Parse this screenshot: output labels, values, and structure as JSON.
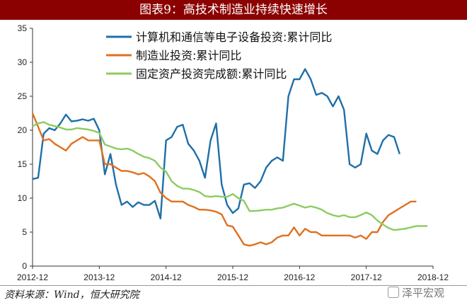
{
  "title": "图表9：高技术制造业持续快速增长",
  "source": "资料来源：Wind，恒大研究院",
  "watermark": "泽平宏观",
  "chart_data": {
    "type": "line",
    "ylim": [
      0,
      35
    ],
    "yticks": [
      0,
      5,
      10,
      15,
      20,
      25,
      30,
      35
    ],
    "xlim": [
      "2012-12",
      "2018-12"
    ],
    "xticks": [
      "2012-12",
      "2013-12",
      "2014-12",
      "2015-12",
      "2016-12",
      "2017-12",
      "2018-12"
    ],
    "legend_position": "top-center",
    "grid": false,
    "series": [
      {
        "name": "计算机和通信等电子设备投资:累计同比",
        "color": "#1f6fa8",
        "points": [
          [
            "2012-12",
            12.8
          ],
          [
            "2013-01",
            13
          ],
          [
            "2013-02",
            19.5
          ],
          [
            "2013-03",
            20.3
          ],
          [
            "2013-04",
            20
          ],
          [
            "2013-05",
            21
          ],
          [
            "2013-06",
            22.3
          ],
          [
            "2013-07",
            21.3
          ],
          [
            "2013-08",
            21.4
          ],
          [
            "2013-09",
            21.6
          ],
          [
            "2013-10",
            21.4
          ],
          [
            "2013-11",
            21.7
          ],
          [
            "2013-12",
            20
          ],
          [
            "2014-01",
            13.5
          ],
          [
            "2014-02",
            16.5
          ],
          [
            "2014-03",
            12
          ],
          [
            "2014-04",
            9
          ],
          [
            "2014-05",
            9.5
          ],
          [
            "2014-06",
            8.7
          ],
          [
            "2014-07",
            9.4
          ],
          [
            "2014-08",
            9
          ],
          [
            "2014-09",
            9
          ],
          [
            "2014-10",
            9.6
          ],
          [
            "2014-11",
            7
          ],
          [
            "2014-12",
            18.5
          ],
          [
            "2015-01",
            19
          ],
          [
            "2015-02",
            20.5
          ],
          [
            "2015-03",
            20.8
          ],
          [
            "2015-04",
            18
          ],
          [
            "2015-05",
            17
          ],
          [
            "2015-06",
            15.5
          ],
          [
            "2015-07",
            13
          ],
          [
            "2015-08",
            18.5
          ],
          [
            "2015-09",
            21
          ],
          [
            "2015-10",
            12
          ],
          [
            "2015-11",
            9
          ],
          [
            "2015-12",
            7.8
          ],
          [
            "2016-01",
            8.5
          ],
          [
            "2016-02",
            12
          ],
          [
            "2016-03",
            12.2
          ],
          [
            "2016-04",
            11.5
          ],
          [
            "2016-05",
            12.5
          ],
          [
            "2016-06",
            14.5
          ],
          [
            "2016-07",
            15.5
          ],
          [
            "2016-08",
            16
          ],
          [
            "2016-09",
            15.5
          ],
          [
            "2016-10",
            25
          ],
          [
            "2016-11",
            27.5
          ],
          [
            "2016-12",
            27.5
          ],
          [
            "2017-01",
            29
          ],
          [
            "2017-02",
            27.5
          ],
          [
            "2017-03",
            25.2
          ],
          [
            "2017-04",
            25.5
          ],
          [
            "2017-05",
            25
          ],
          [
            "2017-06",
            23.5
          ],
          [
            "2017-07",
            25
          ],
          [
            "2017-08",
            23
          ],
          [
            "2017-09",
            15
          ],
          [
            "2017-10",
            14.5
          ],
          [
            "2017-11",
            15
          ],
          [
            "2017-12",
            19.5
          ],
          [
            "2018-01",
            17
          ],
          [
            "2018-02",
            16.5
          ],
          [
            "2018-03",
            18.5
          ],
          [
            "2018-04",
            19.3
          ],
          [
            "2018-05",
            19
          ],
          [
            "2018-06",
            16.5
          ]
        ]
      },
      {
        "name": "制造业投资:累计同比",
        "color": "#e07020",
        "points": [
          [
            "2012-12",
            22.5
          ],
          [
            "2013-01",
            20.5
          ],
          [
            "2013-02",
            18.5
          ],
          [
            "2013-03",
            18.7
          ],
          [
            "2013-04",
            18
          ],
          [
            "2013-05",
            17.5
          ],
          [
            "2013-06",
            17
          ],
          [
            "2013-07",
            18
          ],
          [
            "2013-08",
            18.5
          ],
          [
            "2013-09",
            19
          ],
          [
            "2013-10",
            18.5
          ],
          [
            "2013-11",
            18.5
          ],
          [
            "2013-12",
            18.5
          ],
          [
            "2014-01",
            15
          ],
          [
            "2014-02",
            15
          ],
          [
            "2014-03",
            14.5
          ],
          [
            "2014-04",
            14
          ],
          [
            "2014-05",
            14
          ],
          [
            "2014-06",
            13.8
          ],
          [
            "2014-07",
            13.5
          ],
          [
            "2014-08",
            13.7
          ],
          [
            "2014-09",
            13.2
          ],
          [
            "2014-10",
            12.5
          ],
          [
            "2014-11",
            10.8
          ],
          [
            "2014-12",
            10
          ],
          [
            "2015-01",
            9.5
          ],
          [
            "2015-02",
            9.5
          ],
          [
            "2015-03",
            9.5
          ],
          [
            "2015-04",
            9
          ],
          [
            "2015-05",
            8.7
          ],
          [
            "2015-06",
            8.3
          ],
          [
            "2015-07",
            8.3
          ],
          [
            "2015-08",
            8.2
          ],
          [
            "2015-09",
            8
          ],
          [
            "2015-10",
            7.6
          ],
          [
            "2015-11",
            6
          ],
          [
            "2015-12",
            5.8
          ],
          [
            "2016-01",
            4.5
          ],
          [
            "2016-02",
            3.2
          ],
          [
            "2016-03",
            3
          ],
          [
            "2016-04",
            3.2
          ],
          [
            "2016-05",
            3.5
          ],
          [
            "2016-06",
            3.2
          ],
          [
            "2016-07",
            3.5
          ],
          [
            "2016-08",
            4.2
          ],
          [
            "2016-09",
            4.5
          ],
          [
            "2016-10",
            4.5
          ],
          [
            "2016-11",
            5.7
          ],
          [
            "2016-12",
            4.5
          ],
          [
            "2017-01",
            5.5
          ],
          [
            "2017-02",
            5
          ],
          [
            "2017-03",
            5
          ],
          [
            "2017-04",
            4.5
          ],
          [
            "2017-05",
            4.5
          ],
          [
            "2017-06",
            4.5
          ],
          [
            "2017-07",
            4.5
          ],
          [
            "2017-08",
            4.5
          ],
          [
            "2017-09",
            4.5
          ],
          [
            "2017-10",
            4.2
          ],
          [
            "2017-11",
            4.5
          ],
          [
            "2017-12",
            4
          ],
          [
            "2018-01",
            5
          ],
          [
            "2018-02",
            5
          ],
          [
            "2018-03",
            6.5
          ],
          [
            "2018-04",
            7.5
          ],
          [
            "2018-05",
            8
          ],
          [
            "2018-06",
            8.5
          ],
          [
            "2018-07",
            9
          ],
          [
            "2018-08",
            9.5
          ],
          [
            "2018-09",
            9.5
          ]
        ]
      },
      {
        "name": "固定资产投资完成额:累计同比",
        "color": "#8ccc60",
        "points": [
          [
            "2012-12",
            20.6
          ],
          [
            "2013-01",
            21
          ],
          [
            "2013-02",
            21.2
          ],
          [
            "2013-03",
            20.8
          ],
          [
            "2013-04",
            20.6
          ],
          [
            "2013-05",
            20.4
          ],
          [
            "2013-06",
            20.1
          ],
          [
            "2013-07",
            20.1
          ],
          [
            "2013-08",
            20.3
          ],
          [
            "2013-09",
            20.2
          ],
          [
            "2013-10",
            20.1
          ],
          [
            "2013-11",
            19.9
          ],
          [
            "2013-12",
            19.6
          ],
          [
            "2014-01",
            17.9
          ],
          [
            "2014-02",
            17.6
          ],
          [
            "2014-03",
            17.3
          ],
          [
            "2014-04",
            17.2
          ],
          [
            "2014-05",
            17.3
          ],
          [
            "2014-06",
            17.0
          ],
          [
            "2014-07",
            16.5
          ],
          [
            "2014-08",
            16.1
          ],
          [
            "2014-09",
            15.9
          ],
          [
            "2014-10",
            15.5
          ],
          [
            "2014-11",
            14.5
          ],
          [
            "2014-12",
            13.9
          ],
          [
            "2015-01",
            12.5
          ],
          [
            "2015-02",
            11.8
          ],
          [
            "2015-03",
            11.4
          ],
          [
            "2015-04",
            11.4
          ],
          [
            "2015-05",
            11.2
          ],
          [
            "2015-06",
            10.9
          ],
          [
            "2015-07",
            10.3
          ],
          [
            "2015-08",
            10.2
          ],
          [
            "2015-09",
            10.3
          ],
          [
            "2015-10",
            10.2
          ],
          [
            "2015-11",
            10.2
          ],
          [
            "2015-12",
            10.6
          ],
          [
            "2016-01",
            10.0
          ],
          [
            "2016-02",
            9.6
          ],
          [
            "2016-03",
            8.1
          ],
          [
            "2016-04",
            8.1
          ],
          [
            "2016-05",
            8.2
          ],
          [
            "2016-06",
            8.3
          ],
          [
            "2016-07",
            8.3
          ],
          [
            "2016-08",
            8.5
          ],
          [
            "2016-09",
            8.6
          ],
          [
            "2016-10",
            8.9
          ],
          [
            "2016-11",
            9.2
          ],
          [
            "2016-12",
            8.9
          ],
          [
            "2017-01",
            8.6
          ],
          [
            "2017-02",
            8.8
          ],
          [
            "2017-03",
            8.6
          ],
          [
            "2017-04",
            8.3
          ],
          [
            "2017-05",
            7.8
          ],
          [
            "2017-06",
            7.5
          ],
          [
            "2017-07",
            7.3
          ],
          [
            "2017-08",
            7.5
          ],
          [
            "2017-09",
            7.2
          ],
          [
            "2017-10",
            7.2
          ],
          [
            "2017-11",
            7.5
          ],
          [
            "2017-12",
            7.9
          ],
          [
            "2018-01",
            7.5
          ],
          [
            "2018-02",
            6.7
          ],
          [
            "2018-03",
            6.1
          ],
          [
            "2018-04",
            5.6
          ],
          [
            "2018-05",
            5.3
          ],
          [
            "2018-06",
            5.4
          ],
          [
            "2018-07",
            5.5
          ],
          [
            "2018-08",
            5.7
          ],
          [
            "2018-09",
            5.9
          ],
          [
            "2018-10",
            5.9
          ],
          [
            "2018-11",
            5.9
          ]
        ]
      }
    ]
  }
}
